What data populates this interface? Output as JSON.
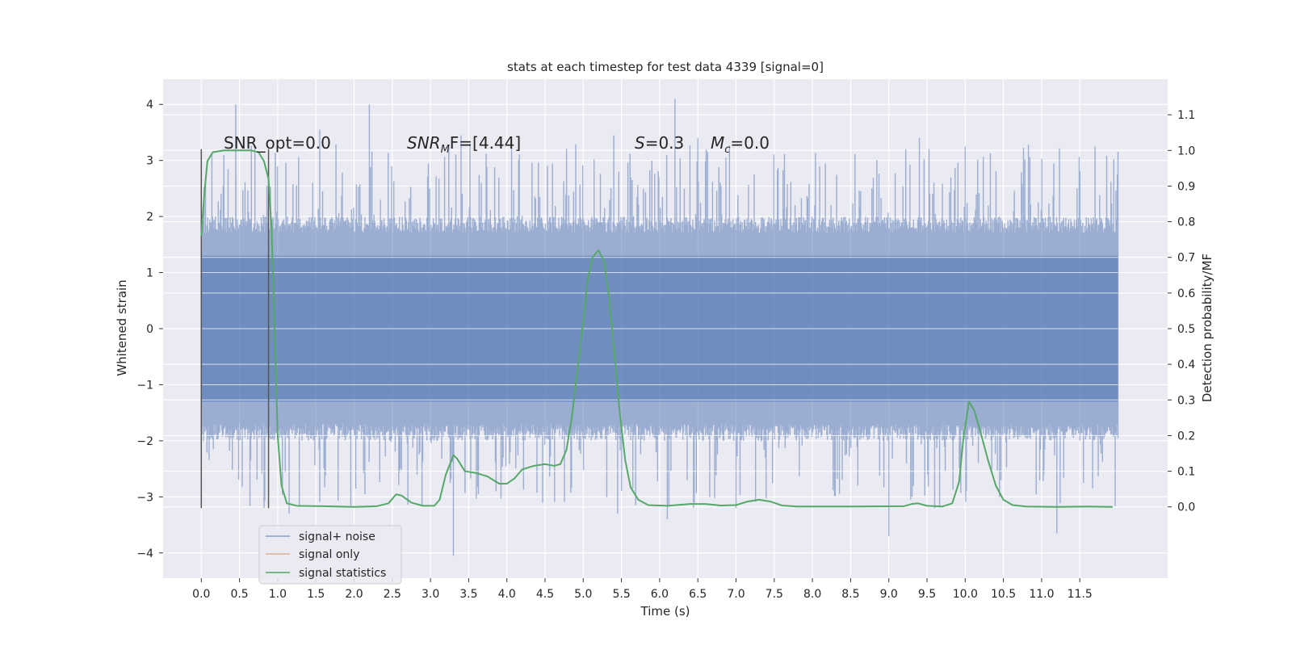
{
  "chart_data": {
    "type": "line",
    "title": "stats at each timestep for test data 4339 [signal=0]",
    "xlabel": "Time (s)",
    "ylabel": "Whitened strain",
    "y2label": "Detection probability/MF",
    "xlim": [
      -0.5,
      12.65
    ],
    "ylim": [
      -4.45,
      4.45
    ],
    "y2lim": [
      -0.2,
      1.2
    ],
    "x_ticks": [
      0.0,
      0.5,
      1.0,
      1.5,
      2.0,
      2.5,
      3.0,
      3.5,
      4.0,
      4.5,
      5.0,
      5.5,
      6.0,
      6.5,
      7.0,
      7.5,
      8.0,
      8.5,
      9.0,
      9.5,
      10.0,
      10.5,
      11.0,
      11.5
    ],
    "x_tick_labels": [
      "0.0",
      "0.5",
      "1.0",
      "1.5",
      "2.0",
      "2.5",
      "3.0",
      "3.5",
      "4.0",
      "4.5",
      "5.0",
      "5.5",
      "6.0",
      "6.5",
      "7.0",
      "7.5",
      "8.0",
      "8.5",
      "9.0",
      "9.5",
      "10.0",
      "10.5",
      "11.0",
      "11.5"
    ],
    "y_ticks": [
      -4,
      -3,
      -2,
      -1,
      0,
      1,
      2,
      3,
      4
    ],
    "y_tick_labels": [
      "−4",
      "−3",
      "−2",
      "−1",
      "0",
      "1",
      "2",
      "3",
      "4"
    ],
    "y2_ticks": [
      0.0,
      0.1,
      0.2,
      0.3,
      0.4,
      0.5,
      0.6,
      0.7,
      0.8,
      0.9,
      1.0,
      1.1
    ],
    "y2_tick_labels": [
      "0.0",
      "0.1",
      "0.2",
      "0.3",
      "0.4",
      "0.5",
      "0.6",
      "0.7",
      "0.8",
      "0.9",
      "1.0",
      "1.1"
    ],
    "grid": true,
    "legend_position": "lower-left",
    "annotations": {
      "snr_opt": "SNR_opt=0.0",
      "snr_mf_base": "SNR",
      "snr_mf_sub": "M",
      "snr_mf_tail": "F=[4.44]",
      "s_sym": "S",
      "s_val": "=0.3",
      "mc_sym": "M",
      "mc_sub": "c",
      "mc_val": "=0.0"
    },
    "series": [
      {
        "name": "signal+ noise",
        "color": "#4c72b0",
        "style": "noise-band",
        "t_range": [
          0.0,
          12.0
        ],
        "core_range": [
          -1.3,
          1.3
        ],
        "band_range": [
          -2.0,
          2.0
        ],
        "spike_peaks_upper": [
          [
            0.45,
            4.0
          ],
          [
            2.2,
            4.0
          ],
          [
            6.2,
            4.1
          ],
          [
            1.55,
            3.55
          ],
          [
            3.4,
            3.45
          ],
          [
            5.4,
            3.45
          ],
          [
            6.5,
            3.4
          ],
          [
            9.4,
            3.4
          ],
          [
            10.0,
            3.25
          ],
          [
            11.7,
            3.25
          ]
        ],
        "spike_peaks_lower": [
          [
            3.3,
            -4.05
          ],
          [
            11.2,
            -3.65
          ],
          [
            9.0,
            -3.7
          ],
          [
            1.15,
            -3.3
          ],
          [
            6.1,
            -3.4
          ],
          [
            5.45,
            -3.3
          ],
          [
            7.0,
            -3.2
          ],
          [
            9.6,
            -3.2
          ]
        ]
      },
      {
        "name": "signal only",
        "color": "#dd8452",
        "style": "line",
        "points": [
          [
            0.0,
            0.0
          ],
          [
            12.0,
            0.0
          ]
        ]
      },
      {
        "name": "signal statistics",
        "color": "#55a868",
        "style": "line",
        "axis": "right",
        "points": [
          [
            0.0,
            0.76
          ],
          [
            0.04,
            0.88
          ],
          [
            0.08,
            0.97
          ],
          [
            0.15,
            0.995
          ],
          [
            0.3,
            1.0
          ],
          [
            0.5,
            1.0
          ],
          [
            0.65,
            1.0
          ],
          [
            0.75,
            0.995
          ],
          [
            0.82,
            0.97
          ],
          [
            0.88,
            0.92
          ],
          [
            0.92,
            0.78
          ],
          [
            0.96,
            0.5
          ],
          [
            1.0,
            0.2
          ],
          [
            1.05,
            0.06
          ],
          [
            1.12,
            0.01
          ],
          [
            1.25,
            0.003
          ],
          [
            1.6,
            0.002
          ],
          [
            2.0,
            0.0
          ],
          [
            2.3,
            0.002
          ],
          [
            2.45,
            0.01
          ],
          [
            2.55,
            0.035
          ],
          [
            2.62,
            0.032
          ],
          [
            2.75,
            0.012
          ],
          [
            2.9,
            0.003
          ],
          [
            3.05,
            0.003
          ],
          [
            3.12,
            0.02
          ],
          [
            3.2,
            0.09
          ],
          [
            3.3,
            0.145
          ],
          [
            3.35,
            0.135
          ],
          [
            3.45,
            0.1
          ],
          [
            3.6,
            0.095
          ],
          [
            3.75,
            0.085
          ],
          [
            3.9,
            0.065
          ],
          [
            4.0,
            0.065
          ],
          [
            4.1,
            0.08
          ],
          [
            4.2,
            0.105
          ],
          [
            4.35,
            0.115
          ],
          [
            4.5,
            0.12
          ],
          [
            4.62,
            0.115
          ],
          [
            4.7,
            0.12
          ],
          [
            4.78,
            0.16
          ],
          [
            4.85,
            0.25
          ],
          [
            4.92,
            0.38
          ],
          [
            5.0,
            0.52
          ],
          [
            5.06,
            0.64
          ],
          [
            5.12,
            0.7
          ],
          [
            5.2,
            0.72
          ],
          [
            5.27,
            0.69
          ],
          [
            5.33,
            0.6
          ],
          [
            5.4,
            0.45
          ],
          [
            5.47,
            0.28
          ],
          [
            5.55,
            0.13
          ],
          [
            5.62,
            0.055
          ],
          [
            5.72,
            0.02
          ],
          [
            5.85,
            0.005
          ],
          [
            6.1,
            0.003
          ],
          [
            6.4,
            0.008
          ],
          [
            6.6,
            0.008
          ],
          [
            6.8,
            0.004
          ],
          [
            7.0,
            0.005
          ],
          [
            7.15,
            0.015
          ],
          [
            7.3,
            0.02
          ],
          [
            7.45,
            0.015
          ],
          [
            7.6,
            0.004
          ],
          [
            7.8,
            0.001
          ],
          [
            8.5,
            0.001
          ],
          [
            9.2,
            0.002
          ],
          [
            9.3,
            0.008
          ],
          [
            9.38,
            0.01
          ],
          [
            9.5,
            0.003
          ],
          [
            9.7,
            0.001
          ],
          [
            9.83,
            0.01
          ],
          [
            9.92,
            0.07
          ],
          [
            9.98,
            0.2
          ],
          [
            10.05,
            0.295
          ],
          [
            10.12,
            0.27
          ],
          [
            10.2,
            0.21
          ],
          [
            10.3,
            0.13
          ],
          [
            10.4,
            0.06
          ],
          [
            10.5,
            0.02
          ],
          [
            10.62,
            0.005
          ],
          [
            10.8,
            0.001
          ],
          [
            11.2,
            0.0
          ],
          [
            11.6,
            0.001
          ],
          [
            11.93,
            0.0
          ]
        ]
      }
    ],
    "vertical_lines": [
      {
        "x": 0.0,
        "y_range": [
          -3.2,
          3.2
        ],
        "color": "#555555"
      },
      {
        "x": 0.88,
        "y_range": [
          -3.2,
          3.2
        ],
        "color": "#555555"
      }
    ]
  }
}
